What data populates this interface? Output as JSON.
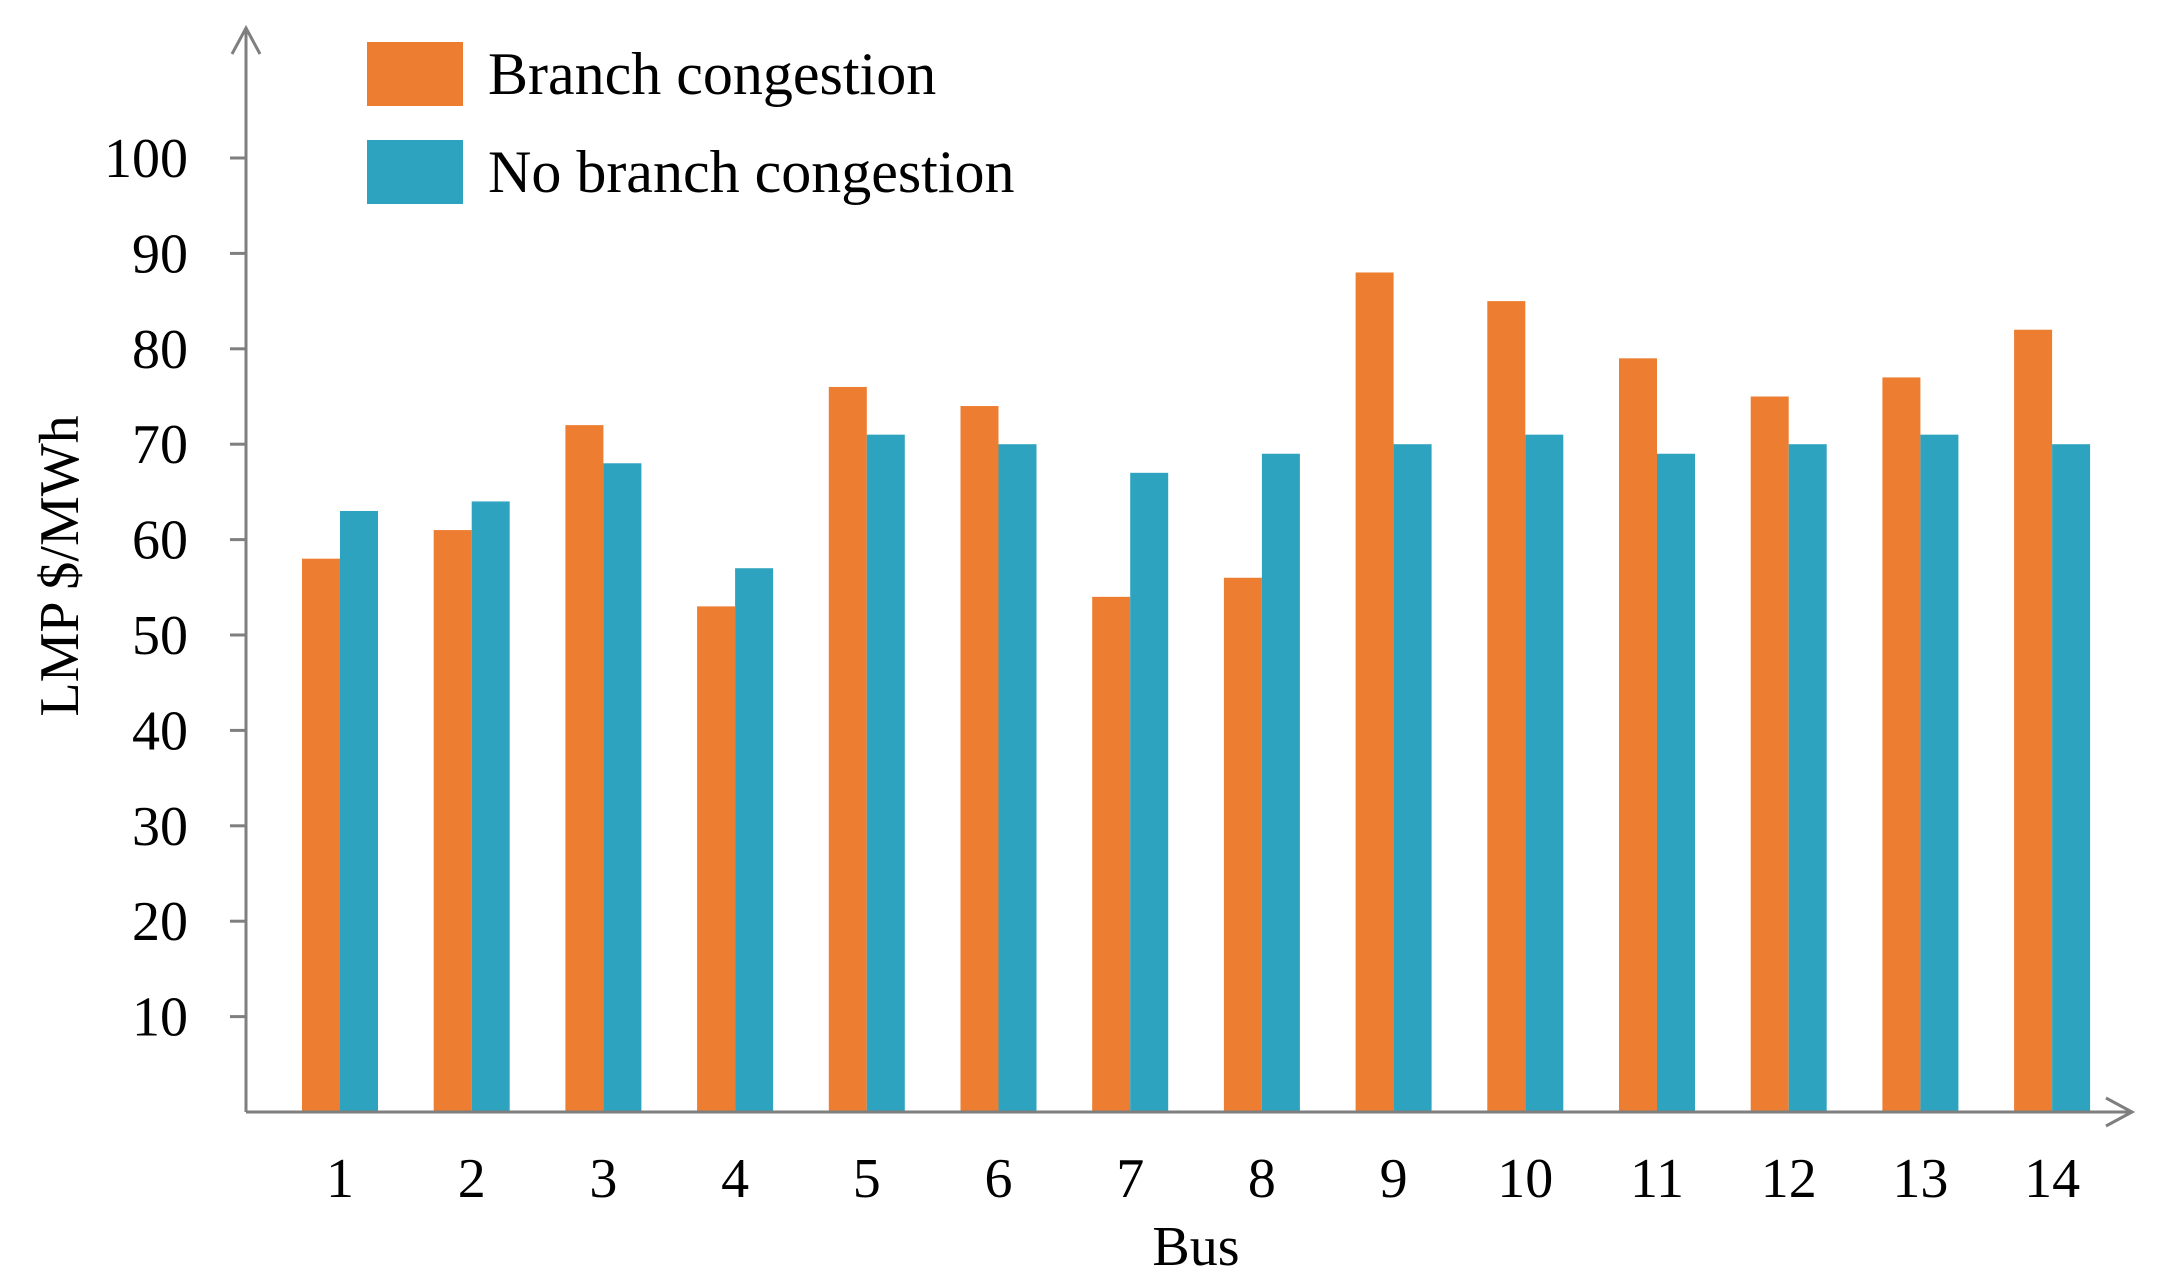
{
  "chart_data": {
    "type": "bar",
    "xlabel": "Bus",
    "ylabel": "LMP $/MWh",
    "categories": [
      "1",
      "2",
      "3",
      "4",
      "5",
      "6",
      "7",
      "8",
      "9",
      "10",
      "11",
      "12",
      "13",
      "14"
    ],
    "series": [
      {
        "name": "Branch congestion",
        "color": "#ed7d31",
        "values": [
          58,
          61,
          72,
          53,
          76,
          74,
          54,
          56,
          88,
          85,
          79,
          75,
          77,
          82
        ]
      },
      {
        "name": "No branch congestion",
        "color": "#2ea3bf",
        "values": [
          63,
          64,
          68,
          57,
          71,
          70,
          67,
          69,
          70,
          71,
          69,
          70,
          71,
          70
        ]
      }
    ],
    "yticks": [
      10,
      20,
      30,
      40,
      50,
      60,
      70,
      80,
      90,
      100
    ],
    "ylim": [
      0,
      100
    ],
    "grid": false,
    "legend": "top-left"
  }
}
